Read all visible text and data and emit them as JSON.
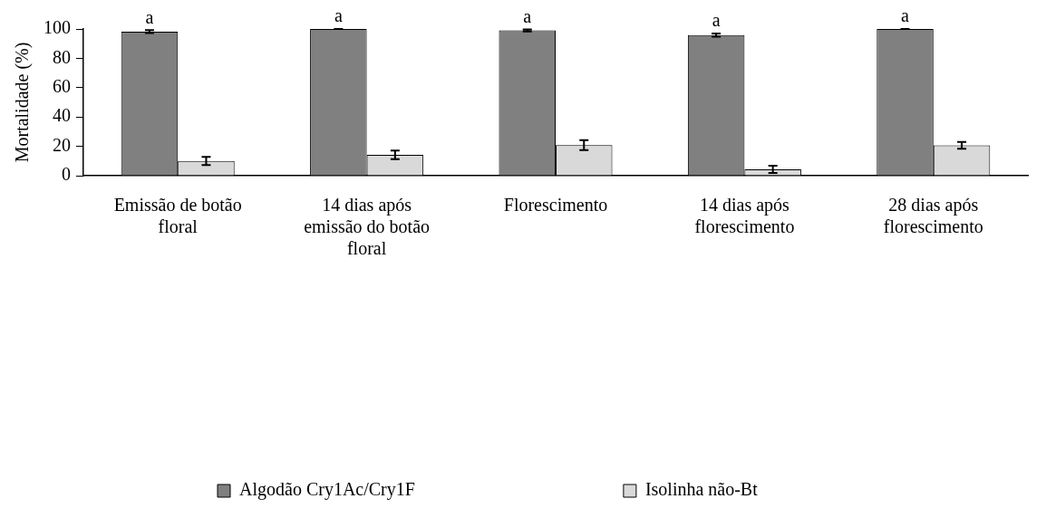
{
  "chart_data": {
    "type": "bar",
    "ylabel": "Mortalidade (%)",
    "categories": [
      "Emissão de botão floral",
      "14 dias após emissão do botão floral",
      "Florescimento",
      "14 dias após florescimento",
      "28 dias após florescimento"
    ],
    "series": [
      {
        "name": "Algodão Cry1Ac/Cry1F",
        "color": "#808080",
        "values": [
          98.2,
          100,
          99,
          95.8,
          100
        ],
        "errors": [
          1,
          0,
          0.7,
          1.1,
          0
        ]
      },
      {
        "name": "Isolinha não-Bt",
        "color": "#d9d9d9",
        "values": [
          10,
          14.2,
          20.9,
          4.3,
          20.7
        ],
        "errors": [
          2.8,
          3,
          3.4,
          2.5,
          2.3
        ]
      }
    ],
    "ylim": [
      0,
      100
    ],
    "yticks": [
      0,
      20,
      40,
      60,
      80,
      100
    ],
    "grid": false,
    "legend": "bottom",
    "annotations": [
      {
        "text": "a",
        "x": "Emissão de botão floral",
        "y": 98.2
      },
      {
        "text": "a",
        "x": "14 dias após emissão do botão floral",
        "y": 100
      },
      {
        "text": "a",
        "x": "Florescimento",
        "y": 99
      },
      {
        "text": "a",
        "x": "14 dias após florescimento",
        "y": 95.8
      },
      {
        "text": "a",
        "x": "28 dias após florescimento",
        "y": 100
      }
    ]
  }
}
